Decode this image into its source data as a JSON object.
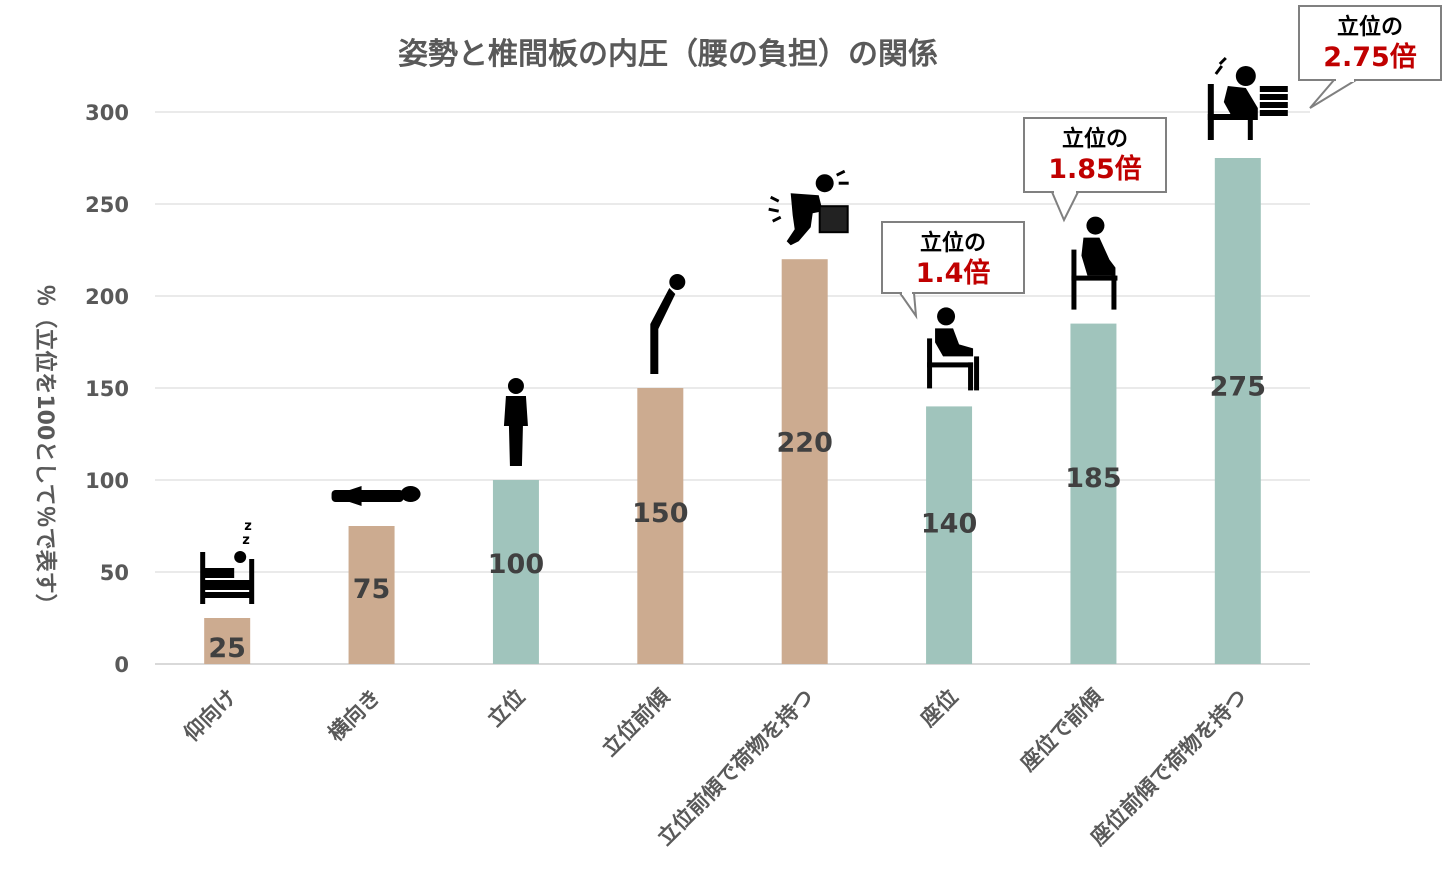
{
  "colors": {
    "lying_category": "#ccab90",
    "upright_category": "#a0c4bc",
    "callout_accent": "#c00000",
    "text": "#595959"
  },
  "chart_data": {
    "type": "bar",
    "title": "姿勢と椎間板の内圧（腰の負担）の関係",
    "ylabel": "％（立位を100として％で表す）",
    "xlabel": "",
    "ylim": [
      0,
      300
    ],
    "yticks": [
      0,
      50,
      100,
      150,
      200,
      250,
      300
    ],
    "grid": true,
    "categories": [
      "仰向け",
      "横向き",
      "立位",
      "立位前傾",
      "立位前傾で荷物を持つ",
      "座位",
      "座位で前傾",
      "座位前傾で荷物を持つ"
    ],
    "values": [
      25,
      75,
      100,
      150,
      220,
      140,
      185,
      275
    ],
    "bar_colors": [
      "#ccab90",
      "#ccab90",
      "#a0c4bc",
      "#ccab90",
      "#ccab90",
      "#a0c4bc",
      "#a0c4bc",
      "#a0c4bc"
    ],
    "icons": [
      "sleeping-in-bed-icon",
      "lying-on-side-icon",
      "standing-person-icon",
      "bending-forward-icon",
      "lifting-box-pain-icon",
      "sitting-on-chair-icon",
      "sitting-leaning-forward-icon",
      "sitting-with-books-pain-icon"
    ],
    "annotations": [
      {
        "category_index": 5,
        "line1": "立位の",
        "line2": "1.4倍"
      },
      {
        "category_index": 6,
        "line1": "立位の",
        "line2": "1.85倍"
      },
      {
        "category_index": 7,
        "line1": "立位の",
        "line2": "2.75倍"
      }
    ]
  }
}
